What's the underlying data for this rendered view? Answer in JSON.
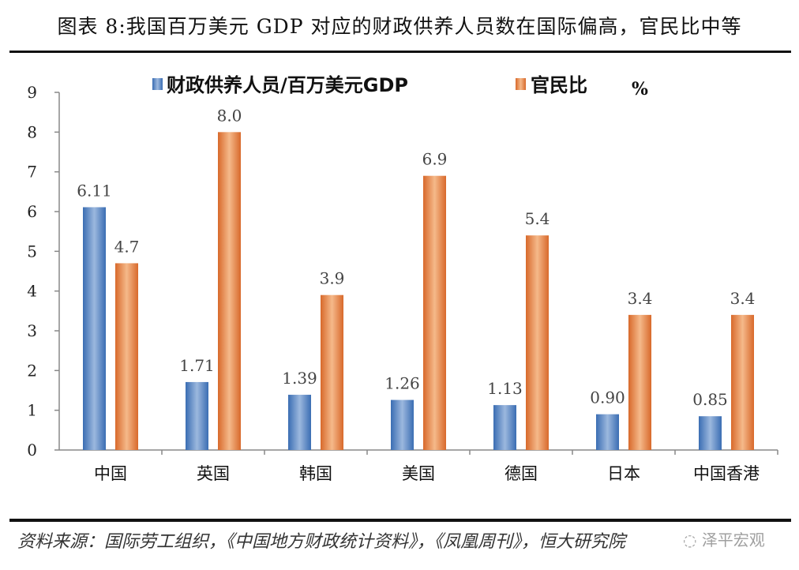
{
  "title": "图表 8:我国百万美元 GDP 对应的财政供养人员数在国际偏高，官民比中等",
  "source": "资料来源：国际劳工组织，《中国地方财政统计资料》，《凤凰周刊》，恒大研究院",
  "watermark": "泽平宏观",
  "chart_data": {
    "type": "bar",
    "categories": [
      "中国",
      "英国",
      "韩国",
      "美国",
      "德国",
      "日本",
      "中国香港"
    ],
    "series": [
      {
        "name": "财政供养人员/百万美元GDP",
        "color": "#4f7fc0",
        "values": [
          6.11,
          1.71,
          1.39,
          1.26,
          1.13,
          0.9,
          0.85
        ],
        "labels": [
          "6.11",
          "1.71",
          "1.39",
          "1.26",
          "1.13",
          "0.90",
          "0.85"
        ]
      },
      {
        "name": "官民比",
        "color": "#e07a3a",
        "values": [
          4.7,
          8.0,
          3.9,
          6.9,
          5.4,
          3.4,
          3.4
        ],
        "labels": [
          "4.7",
          "8.0",
          "3.9",
          "6.9",
          "5.4",
          "3.4",
          "3.4"
        ]
      }
    ],
    "legend_suffix": "%",
    "ylim": [
      0,
      9
    ],
    "yticks": [
      0,
      1,
      2,
      3,
      4,
      5,
      6,
      7,
      8,
      9
    ],
    "legend_position": "top",
    "grid": false
  }
}
